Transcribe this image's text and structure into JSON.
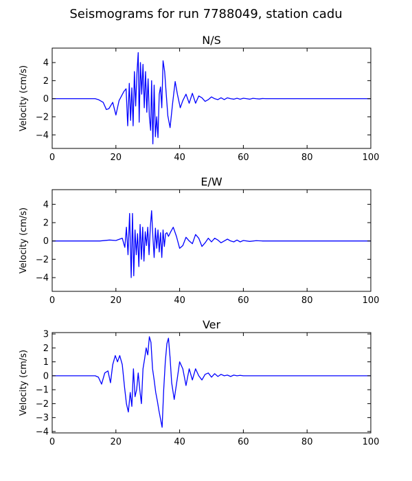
{
  "suptitle": "Seismograms for run 7788049, station cadu",
  "chart_data": [
    {
      "type": "line",
      "title": "N/S",
      "xlabel": "",
      "ylabel": "Velocity (cm/s)",
      "xlim": [
        0,
        100
      ],
      "ylim": [
        -5.5,
        5.6
      ],
      "xticks": [
        0,
        20,
        40,
        60,
        80,
        100
      ],
      "yticks": [
        -4,
        -2,
        0,
        2,
        4
      ],
      "grid": false,
      "color": "#0000ff",
      "series": [
        {
          "x": [
            0,
            13.5,
            14.5,
            16,
            17,
            17.8,
            19,
            20,
            21,
            22.5,
            23.2,
            23.7,
            24.2,
            24.6,
            25,
            25.4,
            25.8,
            26.2,
            26.6,
            27,
            27.3,
            27.7,
            28.1,
            28.5,
            28.9,
            29.3,
            29.7,
            30.1,
            30.5,
            30.9,
            31.2,
            31.6,
            32,
            32.4,
            32.8,
            33.2,
            33.6,
            34,
            34.4,
            34.8,
            35.3,
            35.8,
            36.3,
            37,
            37.8,
            38.6,
            39.3,
            40.2,
            41,
            42,
            43,
            44,
            45,
            46,
            47,
            48,
            49,
            50,
            51,
            52,
            53,
            54,
            55,
            56,
            57,
            58,
            59,
            60,
            61,
            62,
            63,
            64,
            65,
            66,
            67,
            68,
            70,
            100
          ],
          "y": [
            0,
            0,
            -0.1,
            -0.4,
            -1.2,
            -1.1,
            -0.4,
            -1.8,
            -0.2,
            0.8,
            1.1,
            -3.0,
            1.7,
            -2.4,
            1.2,
            -3.0,
            3.0,
            -0.8,
            2.8,
            5.1,
            -2.6,
            4.0,
            0.5,
            3.8,
            -1.0,
            3.0,
            -1.5,
            2.2,
            -2.0,
            -3.5,
            2.0,
            -5.0,
            1.5,
            -4.2,
            -2.0,
            -4.3,
            0.5,
            1.3,
            -1.0,
            4.2,
            3.0,
            0.5,
            -1.9,
            -3.2,
            -0.5,
            1.9,
            0.5,
            -1.0,
            -0.2,
            0.5,
            -0.5,
            0.6,
            -0.5,
            0.3,
            0.1,
            -0.3,
            -0.1,
            0.2,
            0,
            -0.1,
            0.1,
            -0.1,
            0.1,
            0,
            -0.05,
            0.05,
            -0.05,
            0.05,
            0,
            -0.05,
            0.04,
            0,
            -0.03,
            0.02,
            0,
            0,
            0,
            0
          ]
        }
      ]
    },
    {
      "type": "line",
      "title": "E/W",
      "xlabel": "",
      "ylabel": "Velocity (cm/s)",
      "xlim": [
        0,
        100
      ],
      "ylim": [
        -5.5,
        5.6
      ],
      "xticks": [
        0,
        20,
        40,
        60,
        80,
        100
      ],
      "yticks": [
        -4,
        -2,
        0,
        2,
        4
      ],
      "grid": false,
      "color": "#0000ff",
      "series": [
        {
          "x": [
            0,
            15,
            18,
            20,
            22,
            22.8,
            23.3,
            23.8,
            24.3,
            24.8,
            25.2,
            25.6,
            26,
            26.4,
            26.8,
            27.2,
            27.6,
            28,
            28.4,
            28.8,
            29.2,
            29.6,
            30,
            30.4,
            30.8,
            31.2,
            31.6,
            32,
            32.4,
            32.8,
            33.2,
            33.6,
            34,
            34.4,
            34.8,
            35.2,
            35.6,
            36,
            36.5,
            37.2,
            38,
            39,
            40,
            41,
            42,
            43,
            44,
            45,
            46,
            47,
            48,
            49,
            50,
            51,
            52,
            53,
            54,
            55,
            56,
            57,
            58,
            59,
            60,
            62,
            64,
            66,
            68,
            100
          ],
          "y": [
            0,
            0,
            0.1,
            0.05,
            0.3,
            -0.7,
            1.5,
            -1.5,
            3.0,
            -4.0,
            3.0,
            -3.8,
            1.2,
            -1.5,
            0.8,
            -2.8,
            1.8,
            -2.0,
            1.5,
            -2.2,
            1.0,
            -0.5,
            1.5,
            -1.5,
            1.5,
            3.3,
            0.5,
            -1.8,
            1.4,
            -0.8,
            1.2,
            -1.2,
            0.9,
            -1.8,
            1.2,
            -0.6,
            0.8,
            0.9,
            0.5,
            1.0,
            1.5,
            0.5,
            -0.8,
            -0.5,
            0.4,
            0,
            -0.3,
            0.7,
            0.3,
            -0.6,
            -0.2,
            0.3,
            -0.1,
            0.3,
            0.1,
            -0.2,
            0,
            0.2,
            0,
            -0.1,
            0.1,
            -0.1,
            0.05,
            -0.05,
            0.03,
            0,
            0,
            0
          ]
        }
      ]
    },
    {
      "type": "line",
      "title": "Ver",
      "xlabel": "",
      "ylabel": "Velocity (cm/s)",
      "xlim": [
        0,
        100
      ],
      "ylim": [
        -4.1,
        3.1
      ],
      "xticks": [
        0,
        20,
        40,
        60,
        80,
        100
      ],
      "yticks": [
        -4,
        -3,
        -2,
        -1,
        0,
        1,
        2,
        3
      ],
      "grid": false,
      "color": "#0000ff",
      "series": [
        {
          "x": [
            0,
            13.5,
            14.5,
            15.5,
            16.5,
            17.5,
            18.3,
            19,
            19.8,
            20.5,
            21.2,
            22,
            22.7,
            23.3,
            23.9,
            24.5,
            25,
            25.5,
            26,
            26.5,
            27,
            27.5,
            28,
            28.5,
            29,
            29.5,
            30,
            30.5,
            31,
            31.5,
            32,
            32.5,
            33,
            33.5,
            34,
            34.5,
            35,
            35.5,
            36,
            36.5,
            37,
            37.5,
            38.3,
            39.2,
            40,
            41,
            42,
            43,
            44,
            45,
            46,
            47,
            48,
            49,
            50,
            51,
            52,
            53,
            54,
            55,
            56,
            57,
            58,
            59,
            60,
            62,
            64,
            66,
            100
          ],
          "y": [
            0,
            0,
            -0.1,
            -0.6,
            0.2,
            0.35,
            -0.5,
            0.8,
            1.45,
            1.0,
            1.45,
            0.8,
            -0.8,
            -2.0,
            -2.6,
            -1.2,
            -2.2,
            0.5,
            -1.5,
            -1.0,
            0.2,
            -1.0,
            -2.0,
            0.5,
            1.2,
            2.0,
            1.5,
            2.8,
            2.4,
            0.5,
            -0.3,
            -1.2,
            -1.8,
            -2.5,
            -3.1,
            -3.7,
            -1.0,
            1.0,
            2.3,
            2.7,
            1.3,
            -0.5,
            -1.7,
            -0.3,
            1.0,
            0.5,
            -0.7,
            0.5,
            -0.3,
            0.5,
            0,
            -0.3,
            0.1,
            0.2,
            -0.1,
            0.15,
            -0.05,
            0.1,
            0,
            0.05,
            -0.05,
            0.05,
            0,
            0.03,
            0,
            0,
            0,
            0,
            0
          ]
        }
      ]
    }
  ]
}
